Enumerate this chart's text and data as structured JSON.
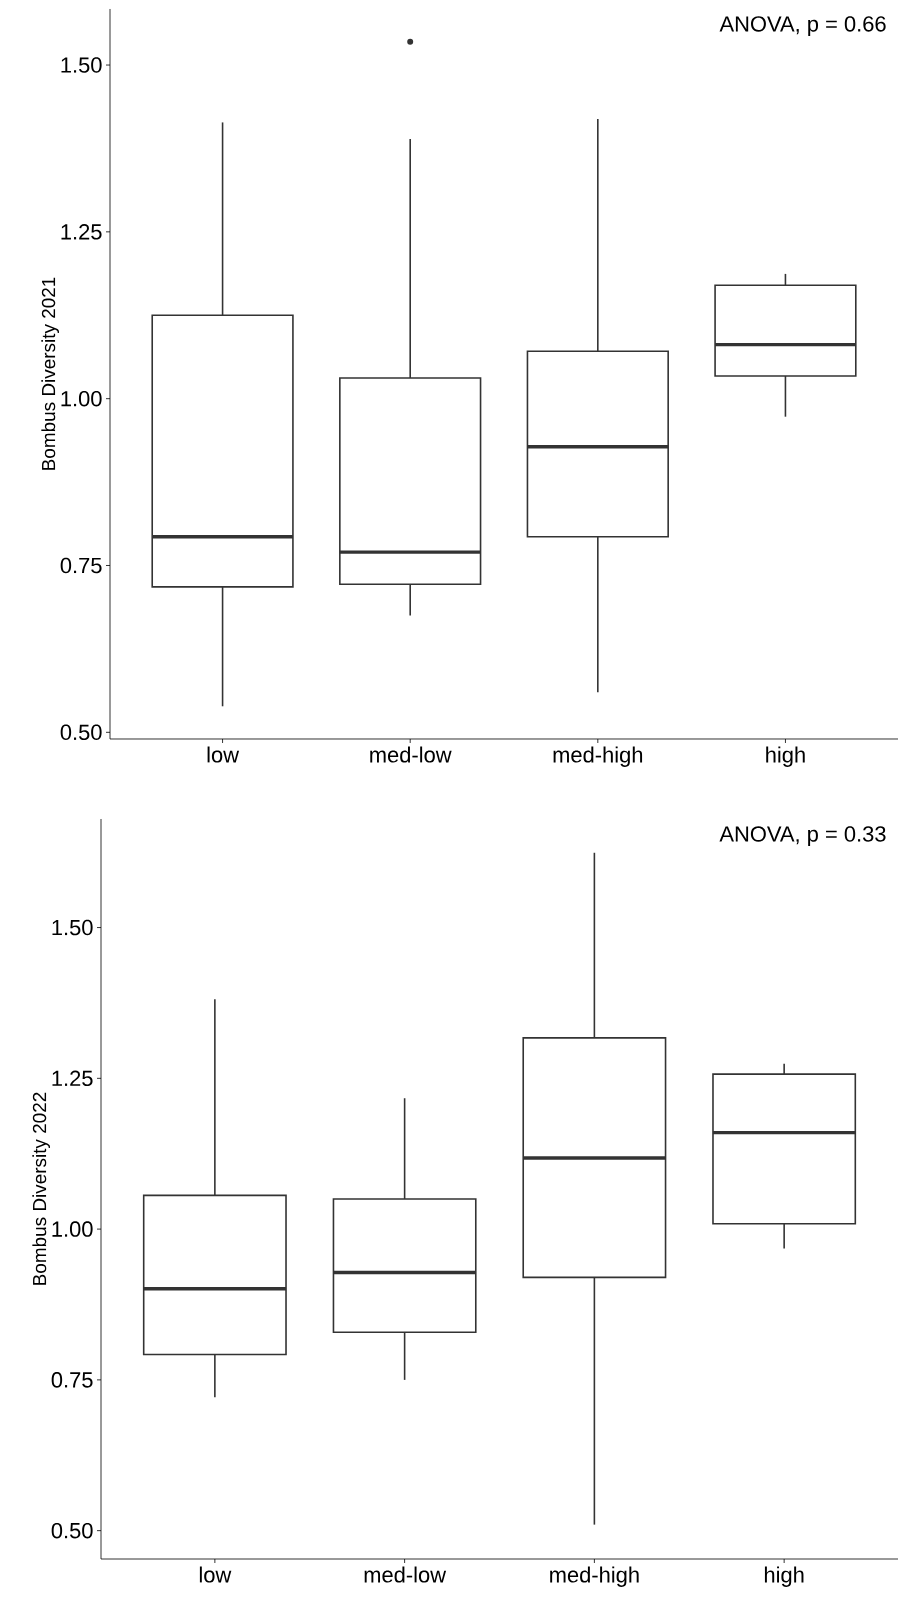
{
  "chart_data": [
    {
      "type": "box",
      "ylabel": "Bombus Diversity 2021",
      "categories": [
        "low",
        "med-low",
        "med-high",
        "high"
      ],
      "color": "#333333",
      "boxes": [
        {
          "low": 0.539,
          "q1": 0.718,
          "median": 0.793,
          "q3": 1.125,
          "high": 1.414
        },
        {
          "low": 0.675,
          "q1": 0.722,
          "median": 0.77,
          "q3": 1.031,
          "high": 1.389,
          "outliers": [
            1.535
          ]
        },
        {
          "low": 0.56,
          "q1": 0.793,
          "median": 0.928,
          "q3": 1.071,
          "high": 1.419
        },
        {
          "low": 0.973,
          "q1": 1.034,
          "median": 1.081,
          "q3": 1.17,
          "high": 1.187
        }
      ],
      "ylim": [
        0.49,
        1.584
      ],
      "yticks": [
        {
          "value": 0.5,
          "label": "0.50"
        },
        {
          "value": 0.75,
          "label": "0.75"
        },
        {
          "value": 1.0,
          "label": "1.00"
        },
        {
          "value": 1.25,
          "label": "1.25"
        },
        {
          "value": 1.5,
          "label": "1.50"
        }
      ],
      "annotations": [
        "ANOVA, p = 0.66"
      ]
    },
    {
      "type": "box",
      "ylabel": "Bombus Diversity 2022",
      "categories": [
        "low",
        "med-low",
        "med-high",
        "high"
      ],
      "color": "#333333",
      "boxes": [
        {
          "low": 0.721,
          "q1": 0.792,
          "median": 0.901,
          "q3": 1.056,
          "high": 1.381
        },
        {
          "low": 0.75,
          "q1": 0.829,
          "median": 0.928,
          "q3": 1.05,
          "high": 1.217
        },
        {
          "low": 0.51,
          "q1": 0.92,
          "median": 1.118,
          "q3": 1.317,
          "high": 1.624
        },
        {
          "low": 0.968,
          "q1": 1.009,
          "median": 1.16,
          "q3": 1.257,
          "high": 1.274
        }
      ],
      "ylim": [
        0.453,
        1.68
      ],
      "yticks": [
        {
          "value": 0.5,
          "label": "0.50"
        },
        {
          "value": 0.75,
          "label": "0.75"
        },
        {
          "value": 1.0,
          "label": "1.00"
        },
        {
          "value": 1.25,
          "label": "1.25"
        },
        {
          "value": 1.5,
          "label": "1.50"
        }
      ],
      "annotations": [
        "ANOVA, p = 0.33"
      ]
    }
  ]
}
